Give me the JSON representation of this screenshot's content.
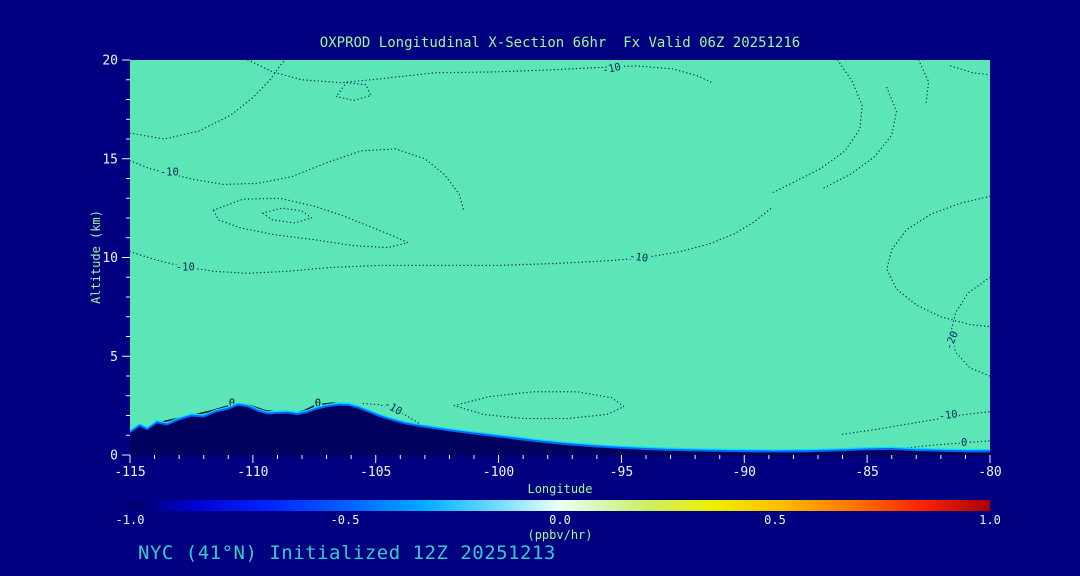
{
  "header": {
    "title": "OXPROD Longitudinal X-Section 66hr  Fx Valid 06Z 20251216"
  },
  "footer": {
    "caption": "NYC (41°N) Initialized 12Z 20251213"
  },
  "colors": {
    "background": "#000080",
    "plot_fill": "#5CE6B8",
    "terrain": "#00005E",
    "contour": "#002A55",
    "contour_solid": "#000B26",
    "axis_text": "#F2F2F2",
    "title_text": "#98FB98",
    "axis_label_text": "#98FB98",
    "footer_text": "#33CCCC",
    "tick_color": "#F2F2F2",
    "terrain_fringe_outer": "#00E0FF",
    "terrain_fringe_inner": "#0A64FF"
  },
  "chart_data": {
    "type": "contour",
    "title": "OXPROD Longitudinal X-Section 66hr  Fx Valid 06Z 20251216",
    "xlabel": "Longitude",
    "ylabel": "Altitude (km)",
    "xlim": [
      -115,
      -80
    ],
    "ylim": [
      0,
      20
    ],
    "x_ticks": [
      -115,
      -110,
      -105,
      -100,
      -95,
      -90,
      -85,
      -80
    ],
    "x_minor_step": 1,
    "y_ticks": [
      0,
      5,
      10,
      15,
      20
    ],
    "y_minor_step": 1,
    "contour_levels": [
      -20,
      -10,
      0
    ],
    "grid": false,
    "colorbar": {
      "label": "(ppbv/hr)",
      "min": -1.0,
      "max": 1.0,
      "ticks": [
        {
          "value": -1.0,
          "label": "-1.0"
        },
        {
          "value": -0.5,
          "label": "-0.5"
        },
        {
          "value": 0.0,
          "label": "0.0"
        },
        {
          "value": 0.5,
          "label": "0.5"
        },
        {
          "value": 1.0,
          "label": "1.0"
        }
      ],
      "stops": [
        {
          "p": 0.0,
          "c": "#000066"
        },
        {
          "p": 0.07,
          "c": "#0000CC"
        },
        {
          "p": 0.16,
          "c": "#0022FF"
        },
        {
          "p": 0.26,
          "c": "#0066FF"
        },
        {
          "p": 0.34,
          "c": "#00AAFF"
        },
        {
          "p": 0.42,
          "c": "#66D9FF"
        },
        {
          "p": 0.48,
          "c": "#CCF5FF"
        },
        {
          "p": 0.5,
          "c": "#EEFFF4"
        },
        {
          "p": 0.54,
          "c": "#DDF7B8"
        },
        {
          "p": 0.6,
          "c": "#CCEE66"
        },
        {
          "p": 0.68,
          "c": "#EEEE00"
        },
        {
          "p": 0.76,
          "c": "#FFBB00"
        },
        {
          "p": 0.84,
          "c": "#FF7700"
        },
        {
          "p": 0.92,
          "c": "#FF2200"
        },
        {
          "p": 1.0,
          "c": "#AA0000"
        }
      ]
    },
    "terrain_profile": [
      [
        -115,
        1.1
      ],
      [
        -114.6,
        1.45
      ],
      [
        -114.3,
        1.25
      ],
      [
        -113.9,
        1.6
      ],
      [
        -113.5,
        1.5
      ],
      [
        -113.0,
        1.75
      ],
      [
        -112.5,
        1.95
      ],
      [
        -112.0,
        1.9
      ],
      [
        -111.5,
        2.15
      ],
      [
        -111.0,
        2.3
      ],
      [
        -110.6,
        2.5
      ],
      [
        -110.2,
        2.42
      ],
      [
        -109.8,
        2.2
      ],
      [
        -109.4,
        2.05
      ],
      [
        -109.0,
        2.08
      ],
      [
        -108.6,
        2.1
      ],
      [
        -108.2,
        2.02
      ],
      [
        -107.8,
        2.12
      ],
      [
        -107.4,
        2.3
      ],
      [
        -107.0,
        2.42
      ],
      [
        -106.5,
        2.5
      ],
      [
        -106.1,
        2.48
      ],
      [
        -105.7,
        2.35
      ],
      [
        -105.3,
        2.15
      ],
      [
        -104.9,
        1.95
      ],
      [
        -104.4,
        1.75
      ],
      [
        -103.8,
        1.55
      ],
      [
        -103.1,
        1.4
      ],
      [
        -102.3,
        1.25
      ],
      [
        -101.4,
        1.1
      ],
      [
        -100.4,
        0.95
      ],
      [
        -99.4,
        0.8
      ],
      [
        -98.4,
        0.65
      ],
      [
        -97.4,
        0.52
      ],
      [
        -96.4,
        0.42
      ],
      [
        -95.4,
        0.34
      ],
      [
        -94.4,
        0.28
      ],
      [
        -93.2,
        0.22
      ],
      [
        -92.0,
        0.18
      ],
      [
        -90.5,
        0.15
      ],
      [
        -89.0,
        0.13
      ],
      [
        -87.5,
        0.14
      ],
      [
        -86.2,
        0.18
      ],
      [
        -85.0,
        0.24
      ],
      [
        -84.0,
        0.26
      ],
      [
        -83.0,
        0.2
      ],
      [
        -81.8,
        0.16
      ],
      [
        -80.8,
        0.14
      ],
      [
        -80,
        0.14
      ]
    ],
    "contours": [
      {
        "level": "-10",
        "style": "dotted",
        "closed": false,
        "points": [
          [
            -110.2,
            20
          ],
          [
            -109.2,
            19.4
          ],
          [
            -108.0,
            19.0
          ],
          [
            -106.4,
            18.85
          ],
          [
            -104.8,
            19.05
          ],
          [
            -102.6,
            19.35
          ],
          [
            -100.2,
            19.4
          ],
          [
            -97.9,
            19.5
          ],
          [
            -96.3,
            19.6
          ],
          [
            -94.4,
            19.7
          ],
          [
            -92.9,
            19.55
          ],
          [
            -91.9,
            19.2
          ],
          [
            -91.3,
            18.85
          ]
        ],
        "labels": [
          {
            "lon": -95.4,
            "km": 19.55,
            "rot": -12
          }
        ]
      },
      {
        "level": "-10",
        "style": "dotted",
        "closed": false,
        "points": [
          [
            -115,
            16.3
          ],
          [
            -113.6,
            16.0
          ],
          [
            -112.2,
            16.4
          ],
          [
            -110.9,
            17.2
          ],
          [
            -110.0,
            18.1
          ],
          [
            -109.3,
            19.0
          ],
          [
            -108.9,
            19.7
          ],
          [
            -108.7,
            20
          ]
        ],
        "labels": []
      },
      {
        "level": "-10",
        "style": "dotted",
        "closed": true,
        "points": [
          [
            -106.6,
            18.15
          ],
          [
            -105.9,
            17.95
          ],
          [
            -105.2,
            18.2
          ],
          [
            -105.4,
            18.75
          ],
          [
            -106.2,
            18.85
          ]
        ],
        "labels": []
      },
      {
        "level": "-10",
        "style": "dotted",
        "closed": false,
        "points": [
          [
            -115,
            14.9
          ],
          [
            -114.2,
            14.5
          ],
          [
            -113.4,
            14.25
          ],
          [
            -112.4,
            13.95
          ],
          [
            -111.2,
            13.7
          ],
          [
            -109.8,
            13.75
          ],
          [
            -108.4,
            14.1
          ],
          [
            -107.0,
            14.8
          ],
          [
            -105.6,
            15.4
          ],
          [
            -104.2,
            15.5
          ],
          [
            -103.0,
            15.0
          ],
          [
            -102.2,
            14.2
          ],
          [
            -101.6,
            13.2
          ],
          [
            -101.4,
            12.3
          ]
        ],
        "labels": [
          {
            "lon": -113.4,
            "km": 14.3,
            "rot": 0
          }
        ]
      },
      {
        "level": "-10",
        "style": "dotted",
        "closed": true,
        "points": [
          [
            -111.6,
            12.4
          ],
          [
            -110.4,
            12.95
          ],
          [
            -108.9,
            13.0
          ],
          [
            -107.5,
            12.6
          ],
          [
            -106.3,
            12.1
          ],
          [
            -105.3,
            11.6
          ],
          [
            -104.3,
            11.1
          ],
          [
            -103.7,
            10.75
          ],
          [
            -104.5,
            10.5
          ],
          [
            -105.9,
            10.6
          ],
          [
            -107.5,
            10.9
          ],
          [
            -109.1,
            11.15
          ],
          [
            -110.5,
            11.5
          ],
          [
            -111.4,
            11.9
          ]
        ],
        "labels": []
      },
      {
        "level": "-10",
        "style": "dotted",
        "closed": true,
        "points": [
          [
            -109.6,
            12.25
          ],
          [
            -108.8,
            12.5
          ],
          [
            -108.0,
            12.35
          ],
          [
            -107.6,
            12.0
          ],
          [
            -108.3,
            11.75
          ],
          [
            -109.2,
            11.9
          ]
        ],
        "labels": []
      },
      {
        "level": "-10",
        "style": "dotted",
        "closed": false,
        "points": [
          [
            -115,
            10.3
          ],
          [
            -114.0,
            9.9
          ],
          [
            -112.9,
            9.55
          ],
          [
            -111.6,
            9.3
          ],
          [
            -110.2,
            9.2
          ],
          [
            -108.6,
            9.3
          ],
          [
            -106.8,
            9.5
          ],
          [
            -104.8,
            9.6
          ],
          [
            -102.4,
            9.6
          ],
          [
            -100.0,
            9.6
          ],
          [
            -97.6,
            9.7
          ],
          [
            -95.4,
            9.85
          ],
          [
            -94.0,
            10.0
          ],
          [
            -92.6,
            10.3
          ],
          [
            -91.4,
            10.7
          ],
          [
            -90.4,
            11.2
          ],
          [
            -89.6,
            11.8
          ],
          [
            -88.9,
            12.5
          ]
        ],
        "labels": [
          {
            "lon": -112.75,
            "km": 9.5,
            "rot": 0
          },
          {
            "lon": -94.3,
            "km": 10.0,
            "rot": 8
          }
        ]
      },
      {
        "level": "-10",
        "style": "dotted",
        "closed": false,
        "points": [
          [
            -86.2,
            20
          ],
          [
            -85.6,
            18.9
          ],
          [
            -85.2,
            17.7
          ],
          [
            -85.3,
            16.5
          ],
          [
            -85.9,
            15.4
          ],
          [
            -86.9,
            14.5
          ],
          [
            -88.0,
            13.8
          ],
          [
            -88.9,
            13.25
          ]
        ],
        "labels": []
      },
      {
        "level": "-10",
        "style": "dotted",
        "closed": false,
        "points": [
          [
            -84.2,
            18.6
          ],
          [
            -83.8,
            17.4
          ],
          [
            -84.0,
            16.2
          ],
          [
            -84.7,
            15.1
          ],
          [
            -85.7,
            14.2
          ],
          [
            -86.8,
            13.5
          ]
        ],
        "labels": []
      },
      {
        "level": "-10",
        "style": "dotted",
        "closed": false,
        "points": [
          [
            -82.9,
            20
          ],
          [
            -82.5,
            18.9
          ],
          [
            -82.6,
            17.8
          ]
        ],
        "labels": []
      },
      {
        "level": "-10",
        "style": "dotted",
        "closed": false,
        "points": [
          [
            -80,
            13.1
          ],
          [
            -81.2,
            12.75
          ],
          [
            -82.4,
            12.2
          ],
          [
            -83.4,
            11.4
          ],
          [
            -84.0,
            10.4
          ],
          [
            -84.2,
            9.4
          ],
          [
            -83.8,
            8.4
          ],
          [
            -83.0,
            7.6
          ],
          [
            -82.0,
            7.0
          ],
          [
            -80.8,
            6.6
          ],
          [
            -80,
            6.5
          ]
        ],
        "labels": []
      },
      {
        "level": "-20",
        "style": "dotted",
        "closed": false,
        "points": [
          [
            -80,
            9.0
          ],
          [
            -80.9,
            8.2
          ],
          [
            -81.4,
            7.2
          ],
          [
            -81.6,
            6.2
          ],
          [
            -81.4,
            5.2
          ],
          [
            -80.8,
            4.4
          ],
          [
            -80,
            4.0
          ]
        ],
        "labels": [
          {
            "lon": -81.55,
            "km": 5.8,
            "rot": -68
          }
        ]
      },
      {
        "level": "-10",
        "style": "dotted",
        "closed": false,
        "points": [
          [
            -86.0,
            1.05
          ],
          [
            -84.6,
            1.3
          ],
          [
            -83.2,
            1.6
          ],
          [
            -82.0,
            1.85
          ],
          [
            -81.0,
            2.05
          ],
          [
            -80,
            2.2
          ]
        ],
        "labels": [
          {
            "lon": -81.7,
            "km": 2.0,
            "rot": -8
          }
        ]
      },
      {
        "level": "0",
        "style": "dotted",
        "closed": false,
        "points": [
          [
            -83.5,
            0.35
          ],
          [
            -82.3,
            0.5
          ],
          [
            -81.2,
            0.6
          ],
          [
            -80,
            0.72
          ]
        ],
        "labels": [
          {
            "lon": -81.05,
            "km": 0.62,
            "rot": 0
          }
        ]
      },
      {
        "level": "0",
        "style": "solid",
        "closed": false,
        "points": [
          [
            -114.3,
            1.35
          ],
          [
            -113.6,
            1.7
          ],
          [
            -112.7,
            1.95
          ],
          [
            -111.8,
            2.2
          ],
          [
            -111.1,
            2.45
          ],
          [
            -110.7,
            2.6
          ],
          [
            -110.1,
            2.5
          ],
          [
            -109.5,
            2.25
          ],
          [
            -108.9,
            2.15
          ],
          [
            -108.3,
            2.1
          ],
          [
            -107.9,
            2.25
          ],
          [
            -107.4,
            2.55
          ],
          [
            -106.8,
            2.62
          ],
          [
            -106.1,
            2.6
          ],
          [
            -105.7,
            2.4
          ]
        ],
        "labels": [
          {
            "lon": -110.85,
            "km": 2.6,
            "rot": 0
          },
          {
            "lon": -107.35,
            "km": 2.6,
            "rot": 0
          }
        ]
      },
      {
        "level": "0",
        "style": "solid",
        "closed": true,
        "points": [
          [
            -114.0,
            1.12
          ],
          [
            -113.3,
            1.28
          ],
          [
            -112.6,
            1.42
          ],
          [
            -112.1,
            1.48
          ],
          [
            -112.6,
            1.3
          ],
          [
            -113.3,
            1.14
          ]
        ],
        "labels": []
      },
      {
        "level": "-10",
        "style": "dotted",
        "closed": false,
        "points": [
          [
            -105.5,
            2.6
          ],
          [
            -104.9,
            2.55
          ],
          [
            -104.35,
            2.4
          ],
          [
            -103.9,
            2.1
          ],
          [
            -103.5,
            1.8
          ],
          [
            -103.1,
            1.5
          ],
          [
            -102.6,
            1.3
          ],
          [
            -101.9,
            1.15
          ],
          [
            -101.2,
            1.05
          ]
        ],
        "labels": [
          {
            "lon": -104.3,
            "km": 2.38,
            "rot": 30
          }
        ]
      },
      {
        "level": "-10",
        "style": "dotted",
        "closed": true,
        "points": [
          [
            -101.8,
            2.5
          ],
          [
            -100.4,
            2.95
          ],
          [
            -98.6,
            3.2
          ],
          [
            -96.8,
            3.2
          ],
          [
            -95.4,
            2.9
          ],
          [
            -94.9,
            2.45
          ],
          [
            -95.6,
            2.05
          ],
          [
            -97.2,
            1.85
          ],
          [
            -99.0,
            1.85
          ],
          [
            -100.6,
            2.05
          ]
        ],
        "labels": []
      },
      {
        "level": "-10",
        "style": "dotted",
        "closed": false,
        "points": [
          [
            -81.6,
            19.7
          ],
          [
            -80.7,
            19.35
          ],
          [
            -80,
            19.25
          ]
        ],
        "labels": []
      }
    ]
  }
}
